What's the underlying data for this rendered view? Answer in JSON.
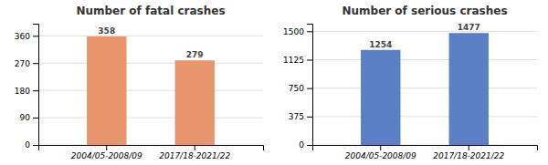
{
  "chart_data": [
    {
      "type": "bar",
      "title": "Number of fatal crashes",
      "categories": [
        "2004/05-2008/09",
        "2017/18-2021/22"
      ],
      "values": [
        358,
        279
      ],
      "color": "#E8956D",
      "ylim": [
        0,
        400
      ],
      "yticks": [
        0,
        90,
        180,
        270,
        360
      ],
      "grid": true,
      "data_labels": true
    },
    {
      "type": "bar",
      "title": "Number of serious crashes",
      "categories": [
        "2004/05-2008/09",
        "2017/18-2021/22"
      ],
      "values": [
        1254,
        1477
      ],
      "color": "#5B7FC3",
      "ylim": [
        0,
        1600
      ],
      "yticks": [
        0,
        375,
        750,
        1125,
        1500
      ],
      "grid": true,
      "data_labels": true
    }
  ]
}
